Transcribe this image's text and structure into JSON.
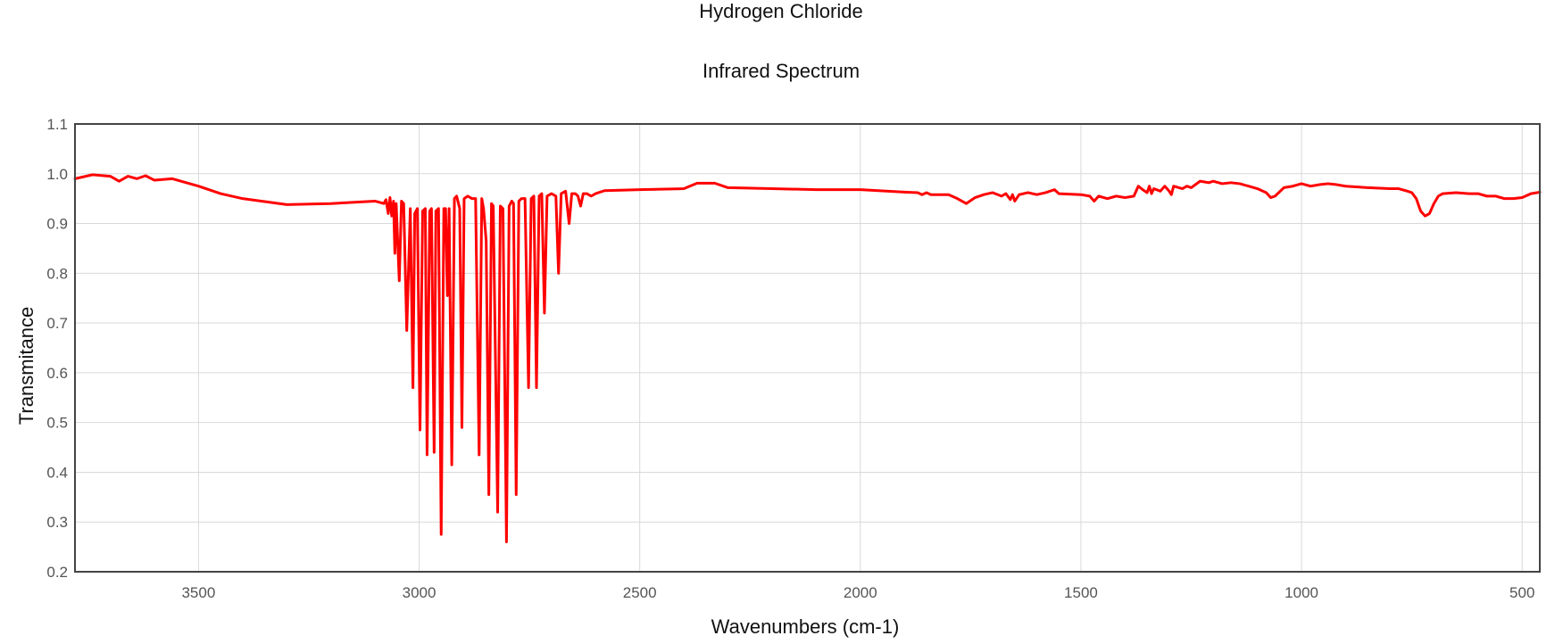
{
  "chart_data": {
    "type": "line",
    "title": "Hydrogen Chloride",
    "subtitle": "Infrared Spectrum",
    "xlabel": "Wavenumbers (cm-1)",
    "ylabel": "Transmitance",
    "xlim": [
      3780,
      460
    ],
    "ylim": [
      0.2,
      1.1
    ],
    "x_reversed": true,
    "grid": true,
    "legend": "none",
    "series_color": "#ff0000",
    "x_ticks": [
      3500,
      3000,
      2500,
      2000,
      1500,
      1000,
      500
    ],
    "y_ticks": [
      0.2,
      0.3,
      0.4,
      0.5,
      0.6,
      0.7,
      0.8,
      0.9,
      1.0,
      1.1
    ],
    "x_tick_labels": [
      "3500",
      "3000",
      "2500",
      "2000",
      "1500",
      "1000",
      "500"
    ],
    "y_tick_labels": [
      "0.2",
      "0.3",
      "0.4",
      "0.5",
      "0.6",
      "0.7",
      "0.8",
      "0.9",
      "1.0",
      "1.1"
    ],
    "series": [
      {
        "points": [
          [
            3780,
            0.99
          ],
          [
            3740,
            0.998
          ],
          [
            3700,
            0.995
          ],
          [
            3680,
            0.985
          ],
          [
            3660,
            0.995
          ],
          [
            3640,
            0.99
          ],
          [
            3620,
            0.996
          ],
          [
            3600,
            0.987
          ],
          [
            3560,
            0.99
          ],
          [
            3500,
            0.975
          ],
          [
            3450,
            0.96
          ],
          [
            3400,
            0.95
          ],
          [
            3300,
            0.938
          ],
          [
            3200,
            0.94
          ],
          [
            3100,
            0.945
          ],
          [
            3080,
            0.94
          ],
          [
            3075,
            0.948
          ],
          [
            3070,
            0.92
          ],
          [
            3066,
            0.952
          ],
          [
            3062,
            0.915
          ],
          [
            3058,
            0.945
          ],
          [
            3055,
            0.84
          ],
          [
            3052,
            0.94
          ],
          [
            3045,
            0.785
          ],
          [
            3040,
            0.945
          ],
          [
            3035,
            0.94
          ],
          [
            3028,
            0.685
          ],
          [
            3020,
            0.93
          ],
          [
            3014,
            0.57
          ],
          [
            3010,
            0.92
          ],
          [
            3004,
            0.93
          ],
          [
            2998,
            0.485
          ],
          [
            2992,
            0.925
          ],
          [
            2986,
            0.93
          ],
          [
            2982,
            0.435
          ],
          [
            2976,
            0.925
          ],
          [
            2972,
            0.93
          ],
          [
            2966,
            0.44
          ],
          [
            2962,
            0.925
          ],
          [
            2956,
            0.93
          ],
          [
            2950,
            0.275
          ],
          [
            2944,
            0.93
          ],
          [
            2940,
            0.93
          ],
          [
            2936,
            0.755
          ],
          [
            2932,
            0.93
          ],
          [
            2926,
            0.415
          ],
          [
            2920,
            0.95
          ],
          [
            2915,
            0.955
          ],
          [
            2908,
            0.93
          ],
          [
            2903,
            0.49
          ],
          [
            2898,
            0.95
          ],
          [
            2890,
            0.955
          ],
          [
            2880,
            0.95
          ],
          [
            2872,
            0.95
          ],
          [
            2864,
            0.435
          ],
          [
            2858,
            0.95
          ],
          [
            2854,
            0.93
          ],
          [
            2848,
            0.865
          ],
          [
            2842,
            0.355
          ],
          [
            2836,
            0.94
          ],
          [
            2832,
            0.935
          ],
          [
            2822,
            0.32
          ],
          [
            2816,
            0.935
          ],
          [
            2810,
            0.93
          ],
          [
            2802,
            0.26
          ],
          [
            2796,
            0.935
          ],
          [
            2790,
            0.945
          ],
          [
            2786,
            0.94
          ],
          [
            2780,
            0.355
          ],
          [
            2774,
            0.945
          ],
          [
            2768,
            0.95
          ],
          [
            2760,
            0.95
          ],
          [
            2752,
            0.57
          ],
          [
            2746,
            0.95
          ],
          [
            2740,
            0.955
          ],
          [
            2734,
            0.57
          ],
          [
            2728,
            0.955
          ],
          [
            2722,
            0.96
          ],
          [
            2716,
            0.72
          ],
          [
            2710,
            0.955
          ],
          [
            2700,
            0.96
          ],
          [
            2690,
            0.955
          ],
          [
            2684,
            0.8
          ],
          [
            2678,
            0.96
          ],
          [
            2668,
            0.965
          ],
          [
            2660,
            0.9
          ],
          [
            2654,
            0.96
          ],
          [
            2646,
            0.96
          ],
          [
            2640,
            0.955
          ],
          [
            2634,
            0.935
          ],
          [
            2628,
            0.96
          ],
          [
            2620,
            0.96
          ],
          [
            2610,
            0.955
          ],
          [
            2600,
            0.96
          ],
          [
            2580,
            0.966
          ],
          [
            2500,
            0.968
          ],
          [
            2400,
            0.97
          ],
          [
            2370,
            0.981
          ],
          [
            2330,
            0.981
          ],
          [
            2300,
            0.972
          ],
          [
            2200,
            0.97
          ],
          [
            2100,
            0.968
          ],
          [
            2000,
            0.968
          ],
          [
            1900,
            0.963
          ],
          [
            1870,
            0.962
          ],
          [
            1860,
            0.958
          ],
          [
            1850,
            0.962
          ],
          [
            1840,
            0.958
          ],
          [
            1800,
            0.958
          ],
          [
            1780,
            0.95
          ],
          [
            1760,
            0.94
          ],
          [
            1740,
            0.952
          ],
          [
            1720,
            0.958
          ],
          [
            1700,
            0.962
          ],
          [
            1680,
            0.955
          ],
          [
            1670,
            0.96
          ],
          [
            1660,
            0.948
          ],
          [
            1655,
            0.958
          ],
          [
            1650,
            0.945
          ],
          [
            1640,
            0.958
          ],
          [
            1620,
            0.962
          ],
          [
            1600,
            0.958
          ],
          [
            1580,
            0.962
          ],
          [
            1560,
            0.968
          ],
          [
            1550,
            0.96
          ],
          [
            1500,
            0.958
          ],
          [
            1480,
            0.955
          ],
          [
            1470,
            0.945
          ],
          [
            1460,
            0.955
          ],
          [
            1440,
            0.95
          ],
          [
            1420,
            0.955
          ],
          [
            1400,
            0.952
          ],
          [
            1380,
            0.955
          ],
          [
            1370,
            0.975
          ],
          [
            1360,
            0.968
          ],
          [
            1350,
            0.962
          ],
          [
            1345,
            0.975
          ],
          [
            1340,
            0.96
          ],
          [
            1335,
            0.97
          ],
          [
            1320,
            0.965
          ],
          [
            1310,
            0.975
          ],
          [
            1300,
            0.965
          ],
          [
            1295,
            0.958
          ],
          [
            1290,
            0.975
          ],
          [
            1270,
            0.97
          ],
          [
            1260,
            0.975
          ],
          [
            1250,
            0.972
          ],
          [
            1230,
            0.985
          ],
          [
            1210,
            0.982
          ],
          [
            1200,
            0.985
          ],
          [
            1180,
            0.98
          ],
          [
            1160,
            0.982
          ],
          [
            1140,
            0.98
          ],
          [
            1120,
            0.975
          ],
          [
            1100,
            0.97
          ],
          [
            1080,
            0.962
          ],
          [
            1070,
            0.952
          ],
          [
            1060,
            0.955
          ],
          [
            1040,
            0.972
          ],
          [
            1020,
            0.975
          ],
          [
            1000,
            0.98
          ],
          [
            980,
            0.975
          ],
          [
            960,
            0.978
          ],
          [
            940,
            0.98
          ],
          [
            920,
            0.978
          ],
          [
            900,
            0.975
          ],
          [
            850,
            0.972
          ],
          [
            800,
            0.97
          ],
          [
            780,
            0.97
          ],
          [
            760,
            0.965
          ],
          [
            750,
            0.962
          ],
          [
            740,
            0.95
          ],
          [
            730,
            0.925
          ],
          [
            720,
            0.915
          ],
          [
            710,
            0.92
          ],
          [
            700,
            0.94
          ],
          [
            690,
            0.955
          ],
          [
            680,
            0.96
          ],
          [
            650,
            0.962
          ],
          [
            620,
            0.96
          ],
          [
            600,
            0.96
          ],
          [
            580,
            0.955
          ],
          [
            560,
            0.955
          ],
          [
            540,
            0.95
          ],
          [
            520,
            0.95
          ],
          [
            500,
            0.952
          ],
          [
            480,
            0.96
          ],
          [
            460,
            0.963
          ]
        ]
      }
    ]
  }
}
